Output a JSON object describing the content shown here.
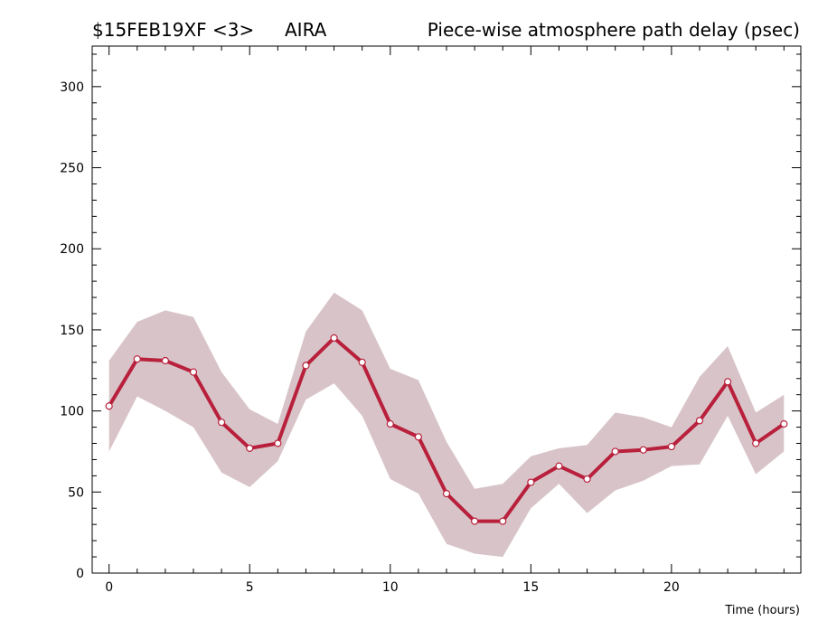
{
  "header": {
    "source": "$15FEB19XF <3>",
    "station": "AIRA",
    "title": "Piece-wise atmosphere path delay (psec)"
  },
  "chart_data": {
    "type": "line",
    "title": "Piece-wise atmosphere path delay (psec)",
    "xlabel": "Time (hours)",
    "ylabel": "",
    "xlim": [
      -0.6,
      24.6
    ],
    "ylim": [
      0,
      325
    ],
    "x_ticks": [
      0,
      5,
      10,
      15,
      20
    ],
    "y_ticks": [
      0,
      50,
      100,
      150,
      200,
      250,
      300
    ],
    "grid": false,
    "x": [
      0,
      1,
      2,
      3,
      4,
      5,
      6,
      7,
      8,
      9,
      10,
      11,
      12,
      13,
      14,
      15,
      16,
      17,
      18,
      19,
      20,
      21,
      22,
      23,
      24
    ],
    "series": [
      {
        "values": [
          103,
          132,
          131,
          124,
          93,
          77,
          80,
          128,
          145,
          130,
          92,
          84,
          49,
          32,
          32,
          56,
          66,
          58,
          75,
          76,
          78,
          94,
          118,
          80,
          92
        ],
        "lower": [
          75,
          109,
          100,
          90,
          62,
          53,
          69,
          107,
          117,
          97,
          58,
          49,
          18,
          12,
          10,
          40,
          55,
          37,
          51,
          57,
          66,
          67,
          97,
          61,
          75
        ],
        "upper": [
          131,
          155,
          162,
          158,
          124,
          101,
          92,
          149,
          173,
          162,
          126,
          119,
          81,
          52,
          55,
          72,
          77,
          79,
          99,
          96,
          90,
          121,
          140,
          99,
          110
        ],
        "color": "#b8203c",
        "band_color": "#d8c4c8"
      }
    ]
  }
}
